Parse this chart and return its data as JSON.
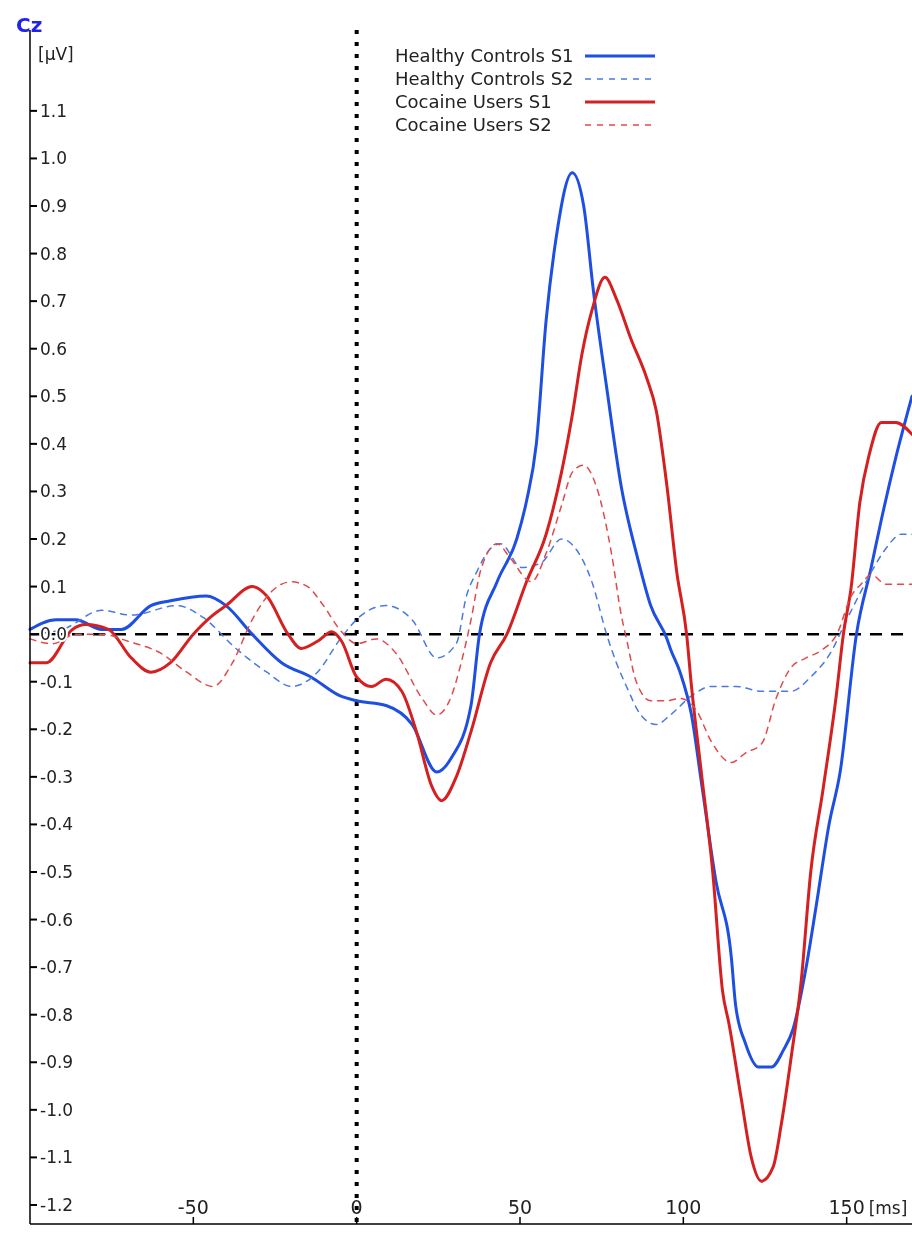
{
  "chart_data": {
    "type": "line",
    "title": "Cz",
    "xlabel": "[ms]",
    "ylabel": "[µV]",
    "xlim": [
      -100,
      170
    ],
    "ylim": [
      -1.24,
      1.27
    ],
    "xticks": [
      -50,
      0,
      50,
      100,
      150
    ],
    "yticks": [
      {
        "value": -1.2,
        "label": "-1.2"
      },
      {
        "value": -1.1,
        "label": "-1.1"
      },
      {
        "value": -1,
        "label": "-1.0"
      },
      -0.9,
      -0.8,
      -0.7,
      -0.6,
      -0.5,
      -0.4,
      -0.3,
      -0.2,
      -0.1,
      {
        "value": 0,
        "label": "0.0"
      },
      0.1,
      0.2,
      0.3,
      0.4,
      0.5,
      0.6,
      0.7,
      0.8,
      0.9,
      {
        "value": 1,
        "label": "1.0"
      },
      1.1
    ],
    "legend": "top",
    "grid": false,
    "ref_lines": [
      {
        "axis": "y",
        "value": 0,
        "line_style": "dashed",
        "color": "#000000"
      },
      {
        "axis": "x",
        "value": 0,
        "line_style": "dotted",
        "color": "#000000"
      }
    ],
    "series": [
      {
        "name": "Healthy Controls S1",
        "color": "#1f4fe0",
        "line_style": "solid",
        "x": [
          -100,
          -92,
          -86,
          -78,
          -72,
          -63,
          -57,
          -46,
          -40,
          -32,
          -23,
          -14,
          -5,
          0,
          9,
          17,
          24.5,
          29,
          35,
          37.6,
          43,
          49,
          52,
          55,
          58,
          61,
          66,
          69.5,
          72.5,
          76.5,
          81,
          86,
          90,
          95,
          96,
          99,
          102.5,
          105.5,
          110,
          114.7,
          116,
          119,
          123,
          127,
          130.6,
          133.6,
          137.6,
          140.7,
          144.6,
          148,
          153,
          157.5,
          160.6,
          165,
          170
        ],
        "values": [
          0.01,
          0.03,
          0.03,
          0.01,
          0.01,
          0.06,
          0.07,
          0.08,
          0.06,
          0,
          -0.06,
          -0.09,
          -0.13,
          -0.14,
          -0.15,
          -0.19,
          -0.29,
          -0.26,
          -0.15,
          0,
          0.11,
          0.2,
          0.28,
          0.4,
          0.66,
          0.83,
          0.97,
          0.9,
          0.72,
          0.52,
          0.31,
          0.16,
          0.06,
          -0.01,
          -0.03,
          -0.08,
          -0.17,
          -0.31,
          -0.52,
          -0.68,
          -0.78,
          -0.86,
          -0.91,
          -0.91,
          -0.875,
          -0.83,
          -0.7,
          -0.57,
          -0.4,
          -0.29,
          0,
          0.14,
          0.24,
          0.37,
          0.5
        ]
      },
      {
        "name": "Healthy Controls S2",
        "color": "#4a7ae0",
        "line_style": "dashed",
        "x": [
          -100,
          -90,
          -78,
          -69,
          -55,
          -47,
          -37,
          -27.5,
          -20,
          -12,
          -5,
          1.5,
          9,
          17,
          24.5,
          30.5,
          33.6,
          36.7,
          41,
          44,
          50.5,
          56.5,
          62.7,
          67,
          72,
          76.5,
          79.5,
          82.6,
          87,
          91.7,
          96,
          102.5,
          108.5,
          116,
          124,
          133,
          139,
          145,
          150,
          154.4,
          157.5,
          162,
          166.7,
          170
        ],
        "values": [
          0,
          0.01,
          0.05,
          0.04,
          0.06,
          0.035,
          -0.03,
          -0.08,
          -0.11,
          -0.08,
          -0.01,
          0.04,
          0.06,
          0.03,
          -0.05,
          -0.02,
          0.08,
          0.13,
          0.18,
          0.19,
          0.14,
          0.15,
          0.2,
          0.18,
          0.11,
          0,
          -0.06,
          -0.11,
          -0.17,
          -0.19,
          -0.17,
          -0.13,
          -0.11,
          -0.11,
          -0.12,
          -0.12,
          -0.09,
          -0.04,
          0.03,
          0.09,
          0.13,
          0.18,
          0.21,
          0.21
        ]
      },
      {
        "name": "Cocaine Users S1",
        "color": "#d42020",
        "line_style": "solid",
        "x": [
          -100,
          -95,
          -87,
          -83,
          -76,
          -69,
          -63,
          -57,
          -50,
          -44,
          -40,
          -32,
          -27.5,
          -21,
          -17,
          -12,
          -7.6,
          -4.6,
          0,
          4.6,
          9,
          13.8,
          18.3,
          23,
          26,
          30.5,
          35,
          41,
          46,
          52,
          58,
          62.7,
          66,
          69,
          72,
          76,
          79.5,
          84,
          88.7,
          91.7,
          95,
          98,
          101,
          102.5,
          105.5,
          109,
          112,
          114,
          117.7,
          120.8,
          123.9,
          127.5,
          130,
          133,
          136,
          139,
          142.8,
          146.8,
          149,
          151.4,
          154,
          157,
          160.6,
          165,
          170
        ],
        "values": [
          -0.06,
          -0.06,
          0.01,
          0.02,
          0.01,
          -0.05,
          -0.08,
          -0.06,
          0,
          0.04,
          0.06,
          0.1,
          0.08,
          0,
          -0.03,
          -0.015,
          0.005,
          -0.015,
          -0.09,
          -0.11,
          -0.095,
          -0.12,
          -0.205,
          -0.32,
          -0.35,
          -0.3,
          -0.205,
          -0.06,
          0,
          0.11,
          0.21,
          0.34,
          0.46,
          0.59,
          0.68,
          0.75,
          0.705,
          0.62,
          0.54,
          0.47,
          0.31,
          0.13,
          0,
          -0.11,
          -0.29,
          -0.5,
          -0.75,
          -0.82,
          -0.975,
          -1.1,
          -1.15,
          -1.12,
          -1.03,
          -0.89,
          -0.735,
          -0.5,
          -0.325,
          -0.13,
          0,
          0.1,
          0.275,
          0.38,
          0.445,
          0.445,
          0.42
        ]
      },
      {
        "name": "Cocaine Users S2",
        "color": "#e04a4a",
        "line_style": "dashed",
        "x": [
          -100,
          -93,
          -86,
          -78,
          -70,
          -60,
          -52,
          -44,
          -38,
          -32,
          -26,
          -20,
          -15,
          -10.7,
          -4.6,
          0,
          6,
          12,
          20,
          24.5,
          29,
          32,
          35,
          38,
          43,
          47,
          53.5,
          58,
          62.7,
          66,
          69.4,
          73.4,
          78,
          81,
          82.6,
          85.6,
          90,
          95,
          99,
          104,
          108.5,
          114.7,
          119,
          124,
          128.4,
          133,
          137.6,
          142,
          147,
          151.4,
          154.4,
          157.5,
          162,
          166.7,
          170
        ],
        "values": [
          -0.01,
          -0.02,
          0,
          0,
          -0.015,
          -0.04,
          -0.08,
          -0.11,
          -0.06,
          0.03,
          0.09,
          0.11,
          0.1,
          0.065,
          0.005,
          -0.02,
          -0.01,
          -0.04,
          -0.135,
          -0.17,
          -0.13,
          -0.06,
          0.03,
          0.135,
          0.19,
          0.16,
          0.11,
          0.17,
          0.27,
          0.34,
          0.355,
          0.31,
          0.17,
          0.04,
          -0.01,
          -0.1,
          -0.14,
          -0.14,
          -0.135,
          -0.16,
          -0.225,
          -0.27,
          -0.25,
          -0.23,
          -0.135,
          -0.07,
          -0.05,
          -0.035,
          0,
          0.08,
          0.105,
          0.125,
          0.105,
          0.105,
          0.105
        ]
      }
    ]
  }
}
